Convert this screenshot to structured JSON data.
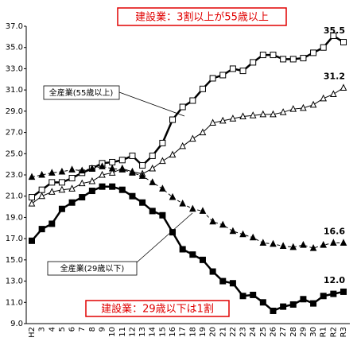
{
  "chart_data": {
    "type": "line",
    "title": "建設業：3割以上が55歳以上",
    "annotation": "建設業：29歳以下は1割",
    "categories": [
      "H2",
      "3",
      "4",
      "5",
      "6",
      "7",
      "8",
      "9",
      "10",
      "11",
      "12",
      "13",
      "14",
      "15",
      "16",
      "17",
      "18",
      "19",
      "20",
      "21",
      "22",
      "23",
      "24",
      "25",
      "26",
      "27",
      "28",
      "29",
      "30",
      "R1",
      "R2",
      "R3"
    ],
    "ylim": [
      9,
      37
    ],
    "yticks": [
      {
        "value": 9,
        "label": "9.0"
      },
      {
        "value": 11,
        "label": "11.0"
      },
      {
        "value": 13,
        "label": "13.0"
      },
      {
        "value": 15,
        "label": "15.0"
      },
      {
        "value": 17,
        "label": "17.0"
      },
      {
        "value": 19,
        "label": "19.0"
      },
      {
        "value": 21,
        "label": "21.0"
      },
      {
        "value": 23,
        "label": "23.0"
      },
      {
        "value": 25,
        "label": "25.0"
      },
      {
        "value": 27,
        "label": "27.0"
      },
      {
        "value": 29,
        "label": "29.0"
      },
      {
        "value": 31,
        "label": "31.0"
      },
      {
        "value": 33,
        "label": "33.0"
      },
      {
        "value": 35,
        "label": "35.0"
      },
      {
        "value": 37,
        "label": "37.0"
      }
    ],
    "grid": false,
    "series": [
      {
        "color": "#000000",
        "marker": "square-open",
        "width": 2.5,
        "dashed": false,
        "end_label": "35.5",
        "values": [
          20.9,
          21.6,
          22.3,
          22.3,
          22.7,
          23.2,
          23.6,
          24.1,
          24.2,
          24.4,
          24.8,
          23.9,
          24.8,
          26.0,
          28.2,
          29.4,
          30.0,
          31.1,
          32.1,
          32.4,
          33.0,
          32.8,
          33.6,
          34.3,
          34.3,
          33.9,
          33.9,
          34.0,
          34.5,
          35.0,
          36.1,
          35.5
        ]
      },
      {
        "name": "全産業(55歳以上)",
        "color": "#000000",
        "marker": "triangle-open",
        "width": 1,
        "dashed": false,
        "end_label": "31.2",
        "values": [
          20.3,
          21.0,
          21.4,
          21.6,
          21.7,
          22.2,
          22.4,
          23.0,
          23.2,
          23.6,
          23.3,
          23.1,
          23.6,
          24.3,
          24.9,
          25.7,
          26.4,
          27.0,
          27.9,
          28.1,
          28.3,
          28.5,
          28.6,
          28.7,
          28.7,
          28.9,
          29.2,
          29.3,
          29.6,
          30.2,
          30.6,
          31.2
        ]
      },
      {
        "name": "全産業(29歳以下)",
        "color": "#000000",
        "marker": "triangle-filled",
        "width": 1,
        "dashed": true,
        "end_label": "16.6",
        "values": [
          22.8,
          23.0,
          23.2,
          23.3,
          23.5,
          23.4,
          23.6,
          23.8,
          23.6,
          23.5,
          23.2,
          22.9,
          22.3,
          21.7,
          20.9,
          20.3,
          19.8,
          19.6,
          18.6,
          18.3,
          17.7,
          17.4,
          17.1,
          16.6,
          16.5,
          16.3,
          16.2,
          16.4,
          16.1,
          16.4,
          16.6,
          16.6
        ]
      },
      {
        "color": "#000000",
        "marker": "square-filled",
        "width": 2.5,
        "dashed": false,
        "end_label": "12.0",
        "values": [
          16.8,
          17.9,
          18.4,
          19.8,
          20.4,
          20.9,
          21.5,
          21.9,
          21.9,
          21.6,
          21.0,
          20.4,
          19.6,
          19.2,
          17.6,
          16.0,
          15.5,
          15.0,
          13.9,
          13.0,
          12.8,
          11.6,
          11.7,
          11.0,
          10.2,
          10.6,
          10.8,
          11.3,
          10.9,
          11.6,
          11.8,
          12.0
        ]
      }
    ]
  }
}
